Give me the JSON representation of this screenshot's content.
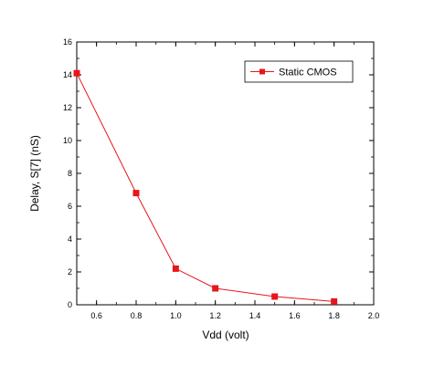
{
  "chart_data": {
    "type": "line",
    "title": "",
    "xlabel": "Vdd (volt)",
    "ylabel": "Delay,  S[7] (nS)",
    "xlim": [
      0.5,
      2.0
    ],
    "ylim": [
      0,
      16
    ],
    "xticks": [
      0.6,
      0.8,
      1.0,
      1.2,
      1.4,
      1.6,
      1.8,
      2.0
    ],
    "xtick_labels": [
      "0.6",
      "0.8",
      "1.0",
      "1.2",
      "1.4",
      "1.6",
      "1.8",
      "2.0"
    ],
    "yticks": [
      0,
      2,
      4,
      6,
      8,
      10,
      12,
      14,
      16
    ],
    "ytick_labels": [
      "0",
      "2",
      "4",
      "6",
      "8",
      "10",
      "12",
      "14",
      "16"
    ],
    "grid": false,
    "legend_position": "top-right",
    "series": [
      {
        "name": "Static CMOS",
        "color": "#e8151b",
        "marker": "square",
        "x": [
          0.5,
          0.8,
          1.0,
          1.2,
          1.5,
          1.8
        ],
        "y": [
          14.1,
          6.8,
          2.2,
          1.0,
          0.5,
          0.2
        ]
      }
    ]
  }
}
